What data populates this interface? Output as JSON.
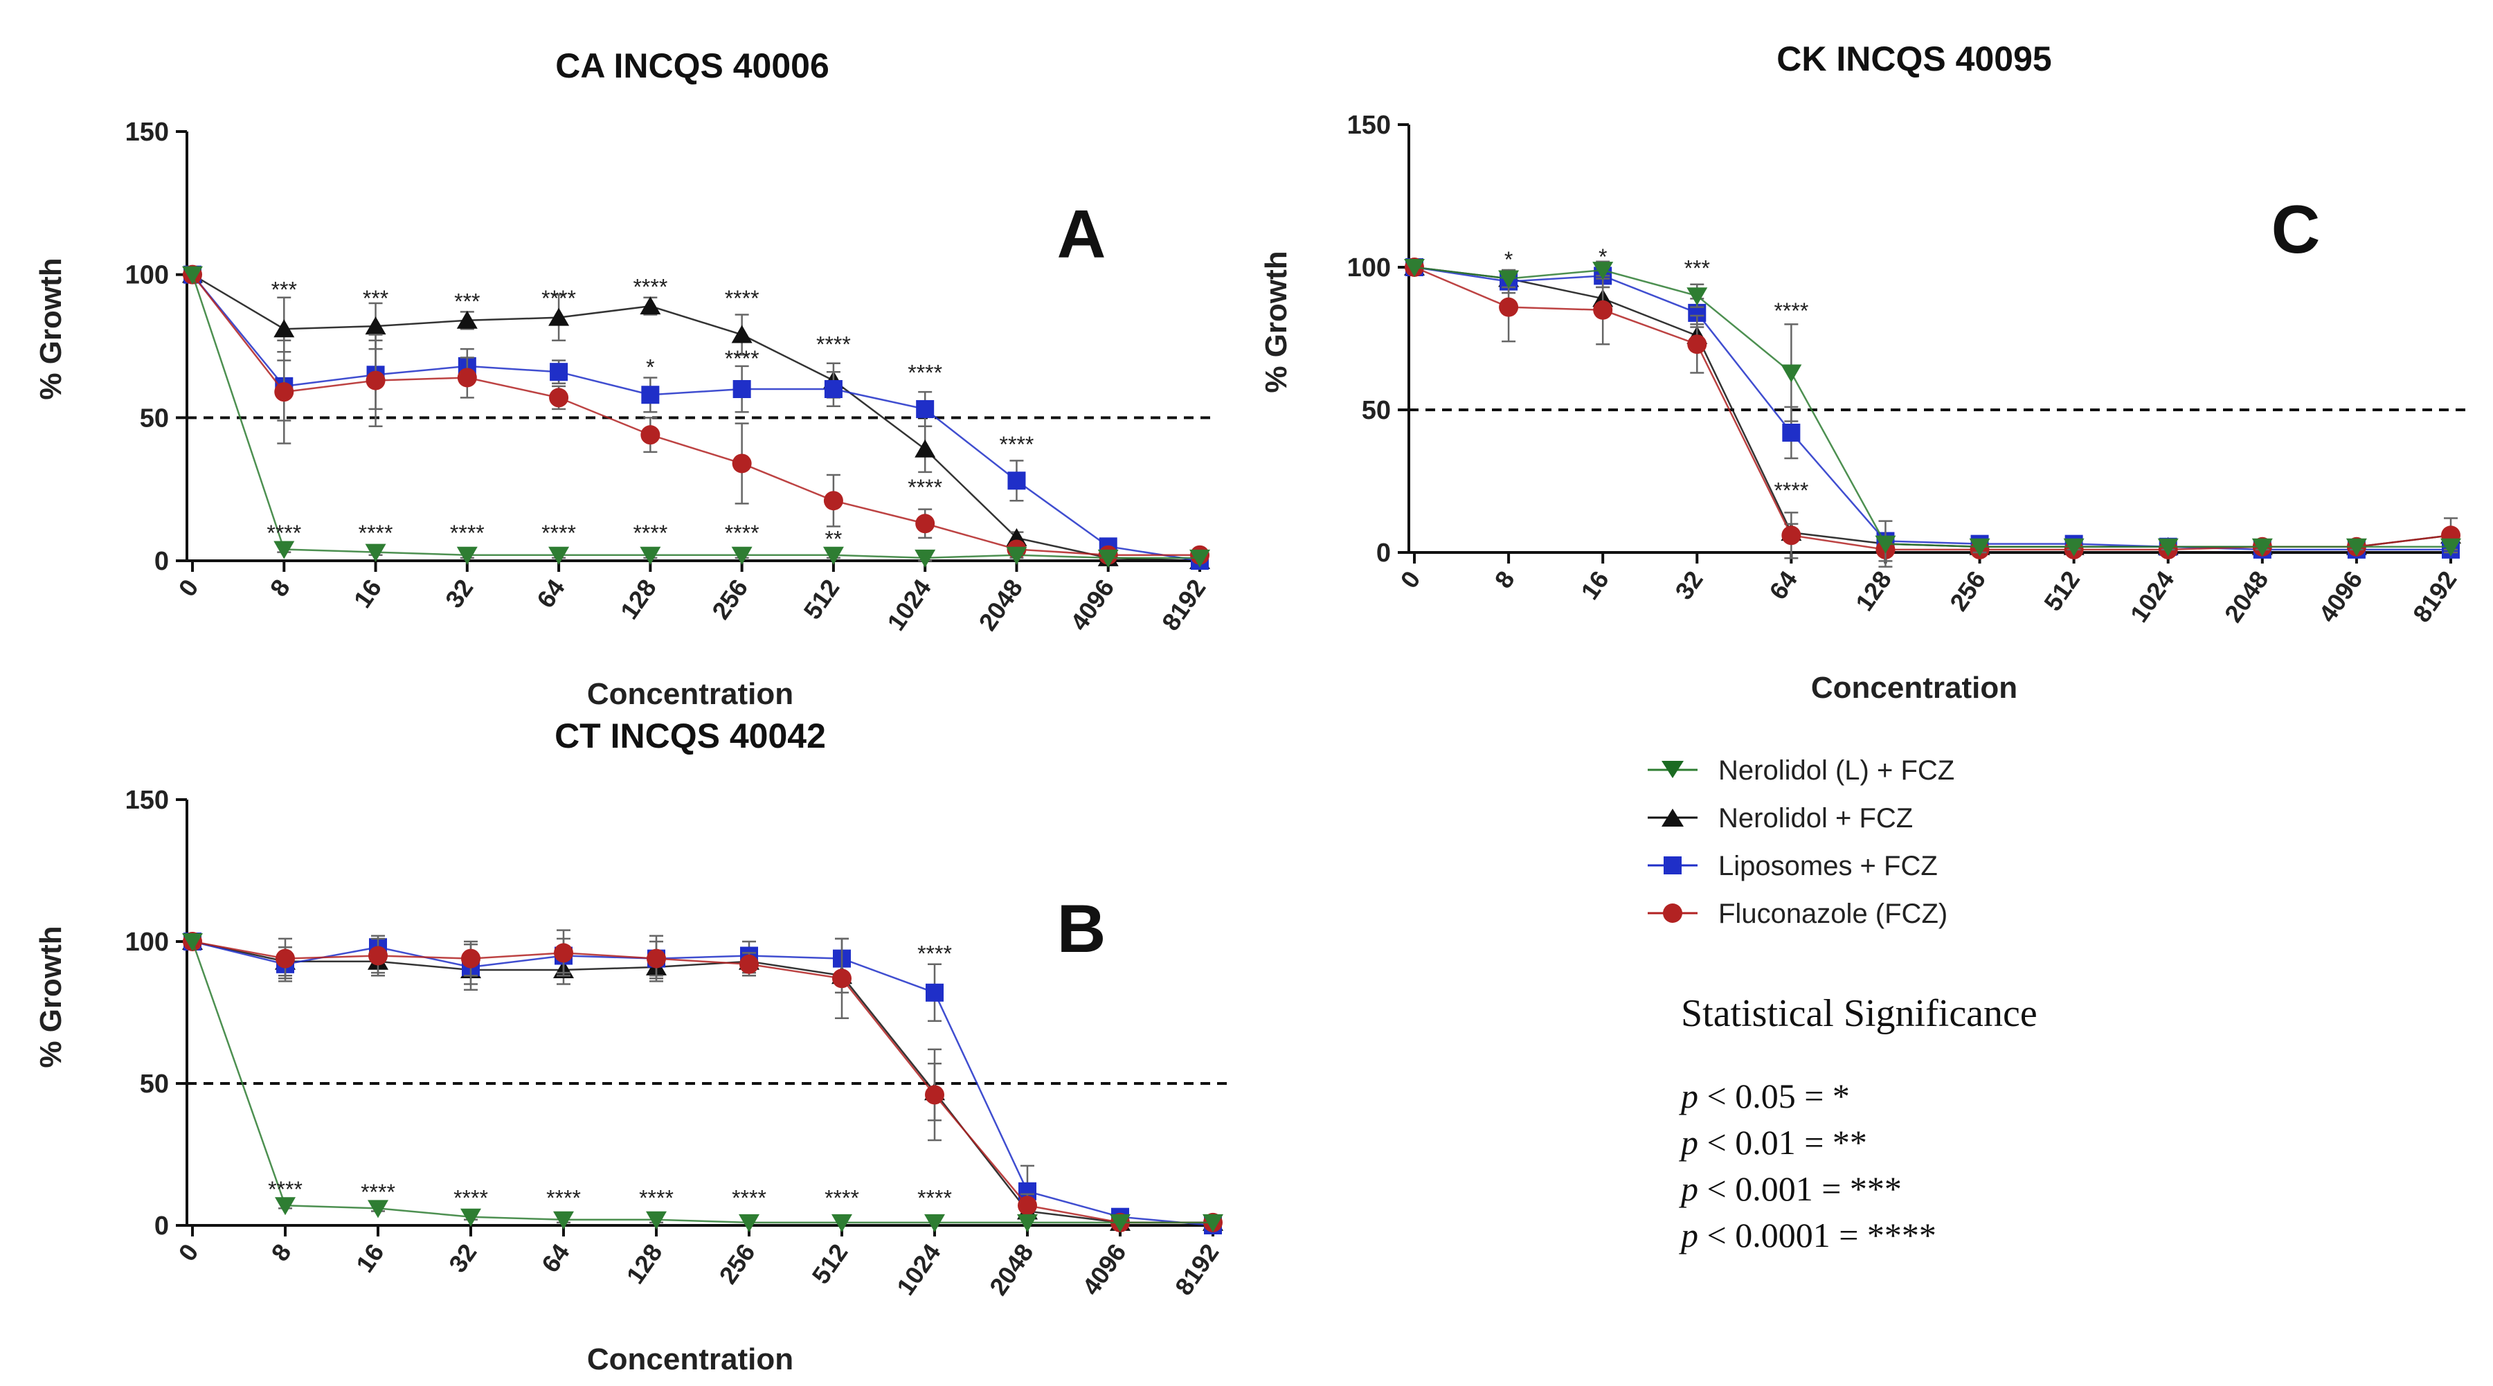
{
  "legend": {
    "items": [
      {
        "key": "NL",
        "label": "Nerolidol (L) + FCZ"
      },
      {
        "key": "N",
        "label": "Nerolidol + FCZ"
      },
      {
        "key": "L",
        "label": "Liposomes + FCZ"
      },
      {
        "key": "F",
        "label": "Fluconazole (FCZ)"
      }
    ]
  },
  "significance": {
    "title": "Statistical Significance",
    "rows": [
      {
        "p": "p",
        "text": " < 0.05 = *"
      },
      {
        "p": "p",
        "text": " < 0.01 = **"
      },
      {
        "p": "p",
        "text": " < 0.001 = ***"
      },
      {
        "p": "p",
        "text": " < 0.0001 = ****"
      }
    ]
  },
  "chart_data": [
    {
      "id": "A",
      "type": "line",
      "panel_letter": "A",
      "title": "CA INCQS 40006",
      "xlabel": "Concentration",
      "ylabel": "% Growth",
      "categories": [
        "0",
        "8",
        "16",
        "32",
        "64",
        "128",
        "256",
        "512",
        "1024",
        "2048",
        "4096",
        "8192"
      ],
      "ylim": [
        0,
        150
      ],
      "yticks": [
        "0",
        "50",
        "100",
        "150"
      ],
      "reference_line": 50,
      "series": [
        {
          "key": "N",
          "name": "Nerolidol + FCZ",
          "color": "#111111",
          "marker": "triangle",
          "values": [
            100,
            81,
            82,
            84,
            85,
            89,
            79,
            63,
            39,
            8,
            1,
            0
          ],
          "errors": [
            0,
            11,
            8,
            3,
            8,
            3,
            7,
            6,
            8,
            2,
            0,
            0
          ]
        },
        {
          "key": "L",
          "name": "Liposomes + FCZ",
          "color": "#1f2fc8",
          "marker": "square",
          "values": [
            100,
            61,
            65,
            68,
            66,
            58,
            60,
            60,
            53,
            28,
            5,
            0
          ],
          "errors": [
            0,
            12,
            12,
            6,
            4,
            6,
            8,
            6,
            6,
            7,
            1,
            0
          ]
        },
        {
          "key": "F",
          "name": "Fluconazole (FCZ)",
          "color": "#b22222",
          "marker": "circle",
          "values": [
            100,
            59,
            63,
            64,
            57,
            44,
            34,
            21,
            13,
            4,
            2,
            2
          ],
          "errors": [
            0,
            18,
            16,
            7,
            4,
            6,
            14,
            9,
            5,
            2,
            1,
            2
          ]
        },
        {
          "key": "NL",
          "name": "Nerolidol (L) + FCZ",
          "color": "#2e7d32",
          "marker": "triangle-down",
          "values": [
            100,
            4,
            3,
            2,
            2,
            2,
            2,
            2,
            1,
            2,
            1,
            1
          ],
          "errors": [
            0,
            1,
            1,
            1,
            1,
            1,
            1,
            1,
            1,
            1,
            0,
            0
          ]
        }
      ],
      "annotations": [
        {
          "x": "8",
          "y": 92,
          "text": "***"
        },
        {
          "x": "16",
          "y": 89,
          "text": "***"
        },
        {
          "x": "32",
          "y": 88,
          "text": "***"
        },
        {
          "x": "64",
          "y": 89,
          "text": "****"
        },
        {
          "x": "128",
          "y": 93,
          "text": "****"
        },
        {
          "x": "128",
          "y": 65,
          "text": "*"
        },
        {
          "x": "256",
          "y": 89,
          "text": "****"
        },
        {
          "x": "256",
          "y": 68,
          "text": "****"
        },
        {
          "x": "512",
          "y": 73,
          "text": "****"
        },
        {
          "x": "1024",
          "y": 63,
          "text": "****"
        },
        {
          "x": "1024",
          "y": 23,
          "text": "****"
        },
        {
          "x": "2048",
          "y": 38,
          "text": "****"
        },
        {
          "x": "8",
          "y": 7,
          "text": "****"
        },
        {
          "x": "16",
          "y": 7,
          "text": "****"
        },
        {
          "x": "32",
          "y": 7,
          "text": "****"
        },
        {
          "x": "64",
          "y": 7,
          "text": "****"
        },
        {
          "x": "128",
          "y": 7,
          "text": "****"
        },
        {
          "x": "256",
          "y": 7,
          "text": "****"
        },
        {
          "x": "512",
          "y": 5,
          "text": "**"
        }
      ]
    },
    {
      "id": "B",
      "type": "line",
      "panel_letter": "B",
      "title": "CT INCQS 40042",
      "xlabel": "Concentration",
      "ylabel": "% Growth",
      "categories": [
        "0",
        "8",
        "16",
        "32",
        "64",
        "128",
        "256",
        "512",
        "1024",
        "2048",
        "4096",
        "8192"
      ],
      "ylim": [
        0,
        150
      ],
      "yticks": [
        "0",
        "50",
        "100",
        "150"
      ],
      "reference_line": 50,
      "series": [
        {
          "key": "N",
          "name": "Nerolidol + FCZ",
          "color": "#111111",
          "marker": "triangle",
          "values": [
            100,
            93,
            93,
            90,
            90,
            91,
            93,
            88,
            47,
            5,
            1,
            1
          ],
          "errors": [
            0,
            5,
            5,
            5,
            5,
            4,
            4,
            6,
            10,
            2,
            0,
            0
          ]
        },
        {
          "key": "L",
          "name": "Liposomes + FCZ",
          "color": "#1f2fc8",
          "marker": "square",
          "values": [
            100,
            92,
            98,
            91,
            95,
            94,
            95,
            94,
            82,
            12,
            3,
            0
          ],
          "errors": [
            0,
            6,
            4,
            8,
            6,
            6,
            5,
            7,
            10,
            9,
            1,
            0
          ]
        },
        {
          "key": "F",
          "name": "Fluconazole (FCZ)",
          "color": "#b22222",
          "marker": "circle",
          "values": [
            100,
            94,
            95,
            94,
            96,
            94,
            92,
            87,
            46,
            7,
            1,
            1
          ],
          "errors": [
            0,
            7,
            6,
            6,
            8,
            8,
            4,
            14,
            16,
            4,
            0,
            0
          ]
        },
        {
          "key": "NL",
          "name": "Nerolidol (L) + FCZ",
          "color": "#2e7d32",
          "marker": "triangle-down",
          "values": [
            100,
            7,
            6,
            3,
            2,
            2,
            1,
            1,
            1,
            1,
            1,
            1
          ],
          "errors": [
            0,
            1,
            1,
            1,
            1,
            1,
            0,
            0,
            0,
            0,
            0,
            0
          ]
        }
      ],
      "annotations": [
        {
          "x": "1024",
          "y": 93,
          "text": "****"
        },
        {
          "x": "8",
          "y": 10,
          "text": "****"
        },
        {
          "x": "16",
          "y": 9,
          "text": "****"
        },
        {
          "x": "32",
          "y": 7,
          "text": "****"
        },
        {
          "x": "64",
          "y": 7,
          "text": "****"
        },
        {
          "x": "128",
          "y": 7,
          "text": "****"
        },
        {
          "x": "256",
          "y": 7,
          "text": "****"
        },
        {
          "x": "512",
          "y": 7,
          "text": "****"
        },
        {
          "x": "1024",
          "y": 7,
          "text": "****"
        }
      ]
    },
    {
      "id": "C",
      "type": "line",
      "panel_letter": "C",
      "title": "CK INCQS 40095",
      "xlabel": "Concentration",
      "ylabel": "% Growth",
      "categories": [
        "0",
        "8",
        "16",
        "32",
        "64",
        "128",
        "256",
        "512",
        "1024",
        "2048",
        "4096",
        "8192"
      ],
      "ylim": [
        0,
        150
      ],
      "yticks": [
        "0",
        "50",
        "100",
        "150"
      ],
      "reference_line": 50,
      "series": [
        {
          "key": "N",
          "name": "Nerolidol + FCZ",
          "color": "#111111",
          "marker": "triangle",
          "values": [
            100,
            96,
            89,
            76,
            7,
            3,
            2,
            2,
            2,
            2,
            2,
            6
          ],
          "errors": [
            0,
            3,
            4,
            4,
            3,
            1,
            0,
            0,
            0,
            0,
            0,
            2
          ]
        },
        {
          "key": "L",
          "name": "Liposomes + FCZ",
          "color": "#1f2fc8",
          "marker": "square",
          "values": [
            100,
            95,
            97,
            84,
            42,
            4,
            3,
            3,
            2,
            1,
            1,
            1
          ],
          "errors": [
            0,
            4,
            4,
            5,
            9,
            1,
            1,
            1,
            1,
            0,
            0,
            0
          ]
        },
        {
          "key": "F",
          "name": "Fluconazole (FCZ)",
          "color": "#b22222",
          "marker": "circle",
          "values": [
            100,
            86,
            85,
            73,
            6,
            1,
            1,
            1,
            1,
            2,
            2,
            6
          ],
          "errors": [
            0,
            12,
            12,
            10,
            8,
            4,
            2,
            2,
            2,
            1,
            1,
            6
          ]
        },
        {
          "key": "NL",
          "name": "Nerolidol (L) + FCZ",
          "color": "#2e7d32",
          "marker": "triangle-down",
          "values": [
            100,
            96,
            99,
            90,
            63,
            3,
            2,
            2,
            2,
            2,
            2,
            2
          ],
          "errors": [
            0,
            3,
            3,
            4,
            17,
            8,
            2,
            1,
            1,
            1,
            1,
            1
          ]
        }
      ],
      "annotations": [
        {
          "x": "8",
          "y": 100,
          "text": "*"
        },
        {
          "x": "16",
          "y": 101,
          "text": "*"
        },
        {
          "x": "32",
          "y": 97,
          "text": "***"
        },
        {
          "x": "64",
          "y": 82,
          "text": "****"
        },
        {
          "x": "64",
          "y": 19,
          "text": "****"
        }
      ]
    }
  ]
}
